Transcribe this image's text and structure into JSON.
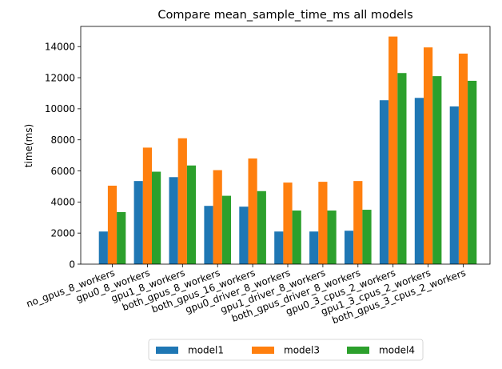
{
  "chart_data": {
    "type": "bar",
    "title": "Compare mean_sample_time_ms all models",
    "xlabel": "",
    "ylabel": "time(ms)",
    "ylim": [
      0,
      15300
    ],
    "yticks": [
      0,
      2000,
      4000,
      6000,
      8000,
      10000,
      12000,
      14000
    ],
    "categories": [
      "no_gpus_8_workers",
      "gpu0_8_workers",
      "gpu1_8_workers",
      "both_gpus_8_workers",
      "both_gpus_16_workers",
      "gpu0_driver_8_workers",
      "gpu1_driver_8_workers",
      "both_gpus_driver_8_workers",
      "gpu0_3_cpus_2_workers",
      "gpu1_3_cpus_2_workers",
      "both_gpus_3_cpus_2_workers"
    ],
    "series": [
      {
        "name": "model1",
        "color": "#1f77b4",
        "values": [
          2100,
          5350,
          5600,
          3750,
          3700,
          2100,
          2100,
          2150,
          10550,
          10700,
          10150
        ]
      },
      {
        "name": "model3",
        "color": "#ff7f0e",
        "values": [
          5050,
          7500,
          8100,
          6050,
          6800,
          5250,
          5300,
          5350,
          14650,
          13950,
          13550
        ]
      },
      {
        "name": "model4",
        "color": "#2ca02c",
        "values": [
          3350,
          5950,
          6350,
          4400,
          4700,
          3450,
          3450,
          3500,
          12300,
          12100,
          11800
        ]
      }
    ],
    "grid": false,
    "legend_placement": "bottom-center"
  }
}
